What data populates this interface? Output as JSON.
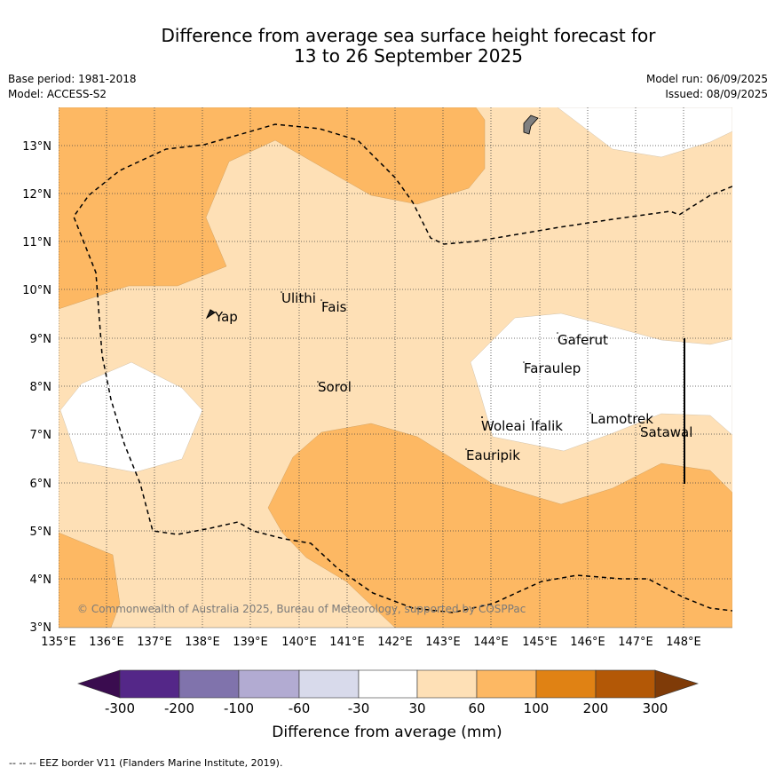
{
  "header": {
    "title_line1": "Difference from average sea surface height forecast for",
    "title_line2": "13 to 26 September 2025",
    "base_period": "Base period: 1981-2018",
    "model": "Model: ACCESS-S2",
    "model_run": "Model run: 06/09/2025",
    "issued": "Issued: 08/09/2025"
  },
  "map": {
    "lon_labels": [
      "135°E",
      "136°E",
      "137°E",
      "138°E",
      "139°E",
      "140°E",
      "141°E",
      "142°E",
      "143°E",
      "144°E",
      "145°E",
      "146°E",
      "147°E",
      "148°E"
    ],
    "lat_labels": [
      "13°N",
      "12°N",
      "11°N",
      "10°N",
      "9°N",
      "8°N",
      "7°N",
      "6°N",
      "5°N",
      "4°N",
      "3°N"
    ],
    "places": {
      "yap": "Yap",
      "ulithi": "Ulithi",
      "fais": "Fais",
      "sorol": "Sorol",
      "gaferut": "Gaferut",
      "faraulep": "Faraulep",
      "woleai": "Woleai",
      "ifalik": "Ifalik",
      "lamotrek": "Lamotrek",
      "satawal": "Satawal",
      "eauripik": "Eauripik"
    },
    "copyright": "© Commonwealth of Australia 2025, Bureau of Meteorology, supported by COSPPac"
  },
  "colorbar": {
    "ticks": [
      "-300",
      "-200",
      "-100",
      "-60",
      "-30",
      "30",
      "60",
      "100",
      "200",
      "300"
    ],
    "label": "Difference from average (mm)",
    "colors": {
      "lt_-300": "#3a0c4f",
      "-300_-200": "#542788",
      "-200_-100": "#8073ac",
      "-100_-60": "#b2abd2",
      "-60_-30": "#d8daeb",
      "-30_30": "#ffffff",
      "30_60": "#fee0b6",
      "60_100": "#fdb863",
      "100_200": "#e08214",
      "200_300": "#b35806",
      "gt_300": "#7f3b08"
    }
  },
  "legend_footnote": "--  --  -- EEZ border V11 (Flanders Marine Institute, 2019)."
}
